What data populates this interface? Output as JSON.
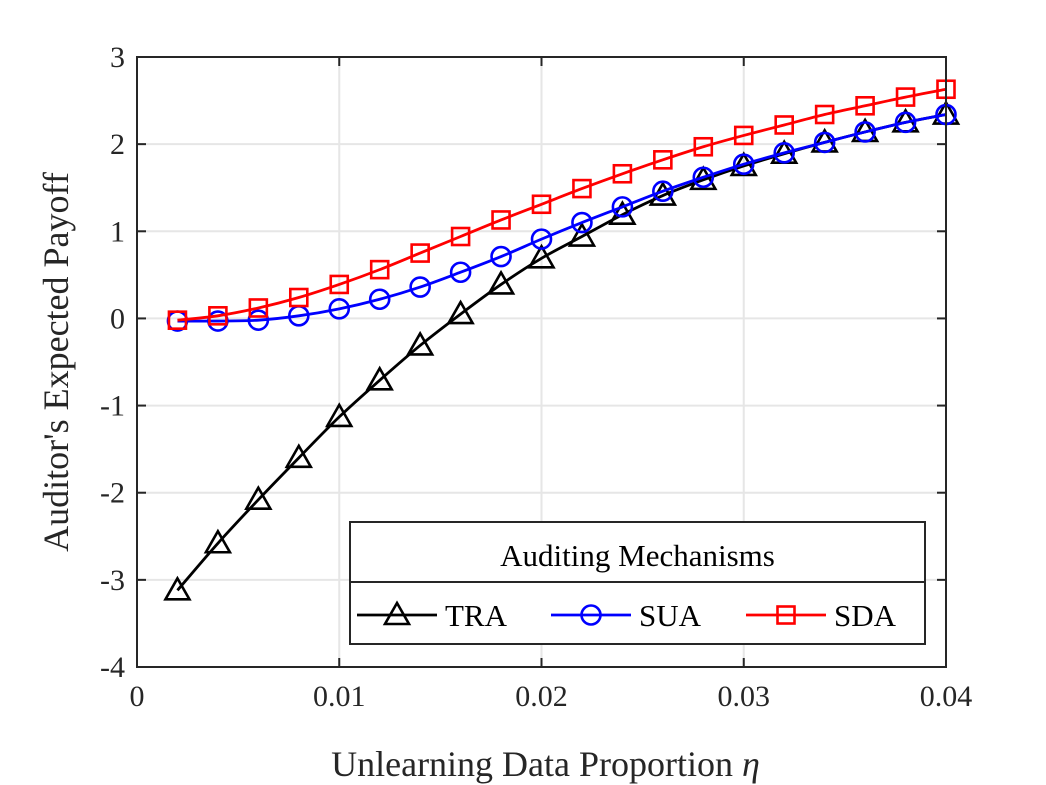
{
  "chart_data": {
    "type": "line",
    "xlabel": "Unlearning Data Proportion",
    "xlabel_symbol": "η",
    "ylabel": "Auditor's Expected Payoff",
    "xlim": [
      0,
      0.04
    ],
    "ylim": [
      -4,
      3
    ],
    "xticks": [
      0,
      0.01,
      0.02,
      0.03,
      0.04
    ],
    "xtick_labels": [
      "0",
      "0.01",
      "0.02",
      "0.03",
      "0.04"
    ],
    "yticks": [
      -4,
      -3,
      -2,
      -1,
      0,
      1,
      2,
      3
    ],
    "ytick_labels": [
      "-4",
      "-3",
      "-2",
      "-1",
      "0",
      "1",
      "2",
      "3"
    ],
    "grid": true,
    "legend_title": "Auditing Mechanisms",
    "legend_position": "bottom-right",
    "x": [
      0.002,
      0.004,
      0.006,
      0.008,
      0.01,
      0.012,
      0.014,
      0.016,
      0.018,
      0.02,
      0.022,
      0.024,
      0.026,
      0.028,
      0.03,
      0.032,
      0.034,
      0.036,
      0.038,
      0.04
    ],
    "series": [
      {
        "name": "TRA",
        "color": "#000000",
        "marker": "triangle",
        "values": [
          -3.12,
          -2.58,
          -2.08,
          -1.6,
          -1.13,
          -0.71,
          -0.31,
          0.05,
          0.39,
          0.69,
          0.94,
          1.19,
          1.41,
          1.59,
          1.75,
          1.89,
          2.02,
          2.14,
          2.25,
          2.34
        ]
      },
      {
        "name": "SUA",
        "color": "#0000ff",
        "marker": "circle",
        "values": [
          -0.03,
          -0.03,
          -0.02,
          0.03,
          0.11,
          0.22,
          0.36,
          0.53,
          0.71,
          0.91,
          1.1,
          1.28,
          1.46,
          1.62,
          1.77,
          1.9,
          2.02,
          2.14,
          2.25,
          2.34
        ]
      },
      {
        "name": "SDA",
        "color": "#ff0000",
        "marker": "square",
        "values": [
          -0.02,
          0.03,
          0.12,
          0.24,
          0.39,
          0.56,
          0.75,
          0.94,
          1.13,
          1.31,
          1.49,
          1.66,
          1.82,
          1.97,
          2.1,
          2.22,
          2.34,
          2.44,
          2.54,
          2.63
        ]
      }
    ]
  }
}
